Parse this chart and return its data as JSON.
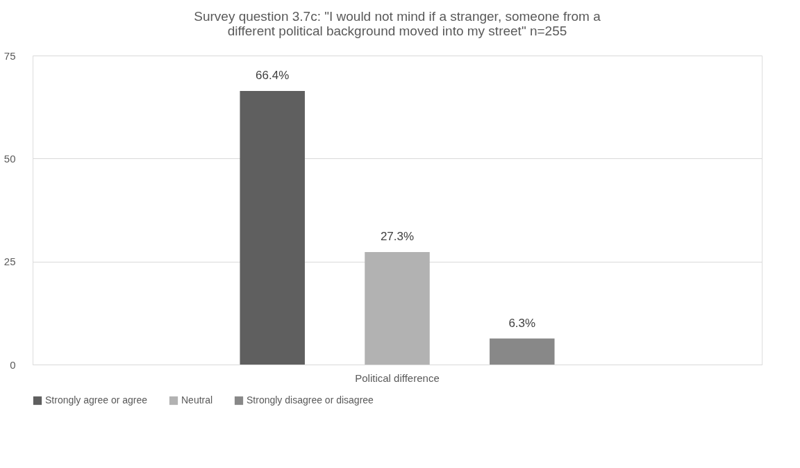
{
  "chart_data": {
    "type": "bar",
    "title": [
      "Survey question 3.7c:  \"I would not mind if a stranger, someone from a",
      "different political background moved into my street\"  n=255"
    ],
    "categories": [
      "Political difference"
    ],
    "series": [
      {
        "name": "Strongly agree or agree",
        "color": "#5f5f5f",
        "values": [
          66.4
        ],
        "value_labels": [
          "66.4%"
        ]
      },
      {
        "name": "Neutral",
        "color": "#b2b2b2",
        "values": [
          27.3
        ],
        "value_labels": [
          "27.3%"
        ]
      },
      {
        "name": "Strongly disagree or disagree",
        "color": "#888888",
        "values": [
          6.3
        ],
        "value_labels": [
          "6.3%"
        ]
      }
    ],
    "ylim": [
      0,
      75
    ],
    "yticks": [
      0,
      25,
      50,
      75
    ],
    "grid": "y",
    "legend": "bottom"
  }
}
